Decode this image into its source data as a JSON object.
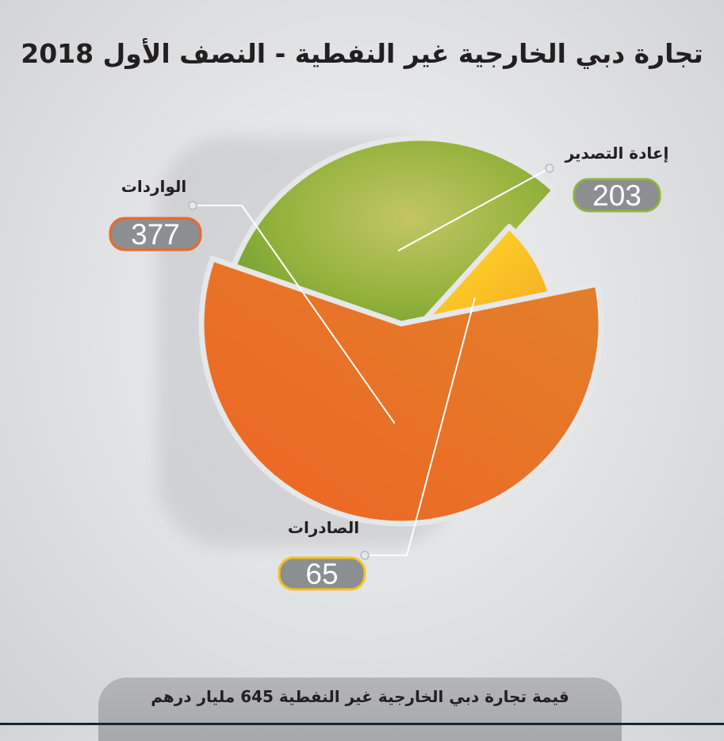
{
  "title": "تجارة دبي الخارجية غير النفطية - النصف الأول 2018",
  "footer": "قيمة تجارة دبي الخارجية غير النفطية 645 مليار درهم",
  "colors": {
    "imports": "#ec6a22",
    "reexports": "#8db43a",
    "exports": "#f7c21b"
  },
  "chart_data": {
    "type": "pie",
    "total": 645,
    "slices": [
      {
        "label": "إعادة التصدير",
        "value": 203,
        "color": "#8db43a"
      },
      {
        "label": "الصادرات",
        "value": 65,
        "color": "#f7c21b"
      },
      {
        "label": "الواردات",
        "value": 377,
        "color": "#ec6a22"
      }
    ]
  }
}
